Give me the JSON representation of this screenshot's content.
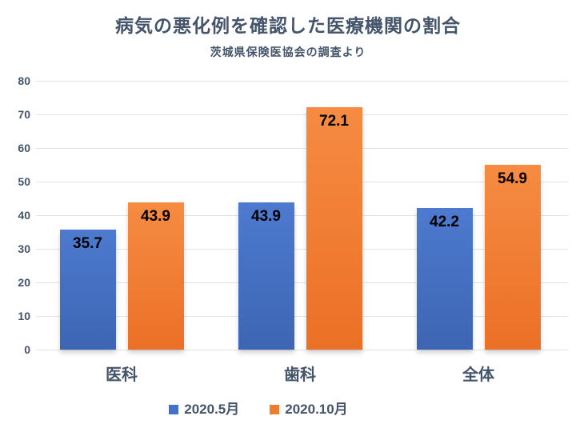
{
  "chart_data": {
    "type": "bar",
    "title": "病気の悪化例を確認した医療機関の割合",
    "subtitle": "茨城県保険医協会の調査より",
    "categories": [
      "医科",
      "歯科",
      "全体"
    ],
    "series": [
      {
        "name": "2020.5月",
        "color": "#4472C4",
        "gradient_top": "#4D7ACF",
        "gradient_bottom": "#3D65B3",
        "values": [
          35.7,
          43.9,
          42.2
        ]
      },
      {
        "name": "2020.10月",
        "color": "#ED7D31",
        "gradient_top": "#F68B42",
        "gradient_bottom": "#EB7026",
        "values": [
          43.9,
          72.1,
          54.9
        ]
      }
    ],
    "ylim": [
      0,
      80
    ],
    "yticks": [
      0,
      10,
      20,
      30,
      40,
      50,
      60,
      70,
      80
    ],
    "grid": true,
    "gridline_color": "#E2E2E2",
    "legend_position": "bottom",
    "value_labels": true,
    "text_color": "#44546A",
    "value_label_color": "#000000",
    "background": "#FFFFFF"
  }
}
